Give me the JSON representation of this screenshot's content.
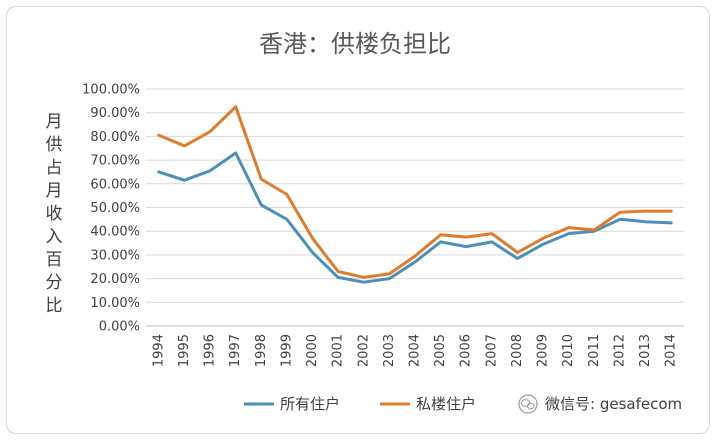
{
  "chart_data": {
    "type": "line",
    "title": "香港：供楼负担比",
    "ylabel": "月供占月收入百分比",
    "xlabel": "",
    "x": [
      "1994",
      "1995",
      "1996",
      "1997",
      "1998",
      "1999",
      "2000",
      "2001",
      "2002",
      "2003",
      "2004",
      "2005",
      "2006",
      "2007",
      "2008",
      "2009",
      "2010",
      "2011",
      "2012",
      "2013",
      "2014"
    ],
    "yticks": [
      "0.00%",
      "10.00%",
      "20.00%",
      "30.00%",
      "40.00%",
      "50.00%",
      "60.00%",
      "70.00%",
      "80.00%",
      "90.00%",
      "100.00%"
    ],
    "ylim": [
      0,
      100
    ],
    "grid": true,
    "legend_position": "bottom",
    "series": [
      {
        "name": "所有住户",
        "color": "#4a90b8",
        "values": [
          65,
          61.5,
          65.5,
          73,
          51,
          45,
          31,
          20.5,
          18.5,
          20,
          27,
          35.5,
          33.5,
          35.5,
          28.5,
          34.5,
          39,
          40,
          45,
          44,
          43.5
        ]
      },
      {
        "name": "私楼住户",
        "color": "#e07b2a",
        "values": [
          80.5,
          76,
          82,
          92.5,
          62,
          55.5,
          37,
          23,
          20.5,
          22,
          29.5,
          38.5,
          37.5,
          39,
          31,
          37,
          41.5,
          40.5,
          48,
          48.5,
          48.5
        ]
      }
    ]
  },
  "watermark": {
    "icon": "wechat-icon",
    "text": "微信号: gesafecom"
  }
}
